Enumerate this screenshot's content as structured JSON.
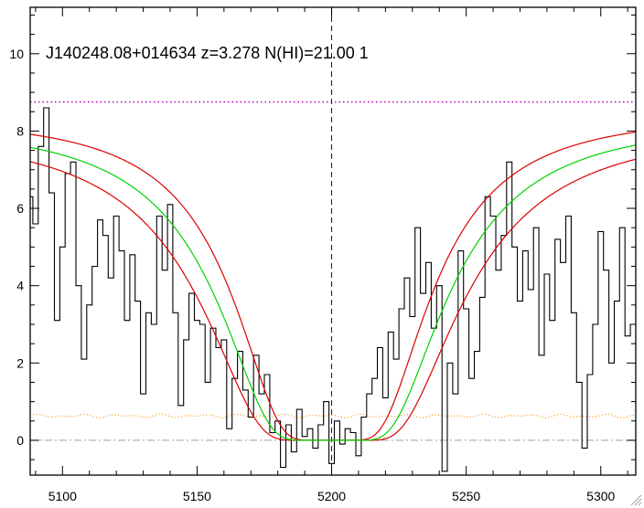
{
  "chart_data": {
    "type": "line",
    "title": "J140248.08+014634 z=3.278 N(HI)=21.00 1",
    "xlabel": "",
    "ylabel": "",
    "xlim": [
      5088,
      5313
    ],
    "ylim": [
      -0.9,
      11.2
    ],
    "x_ticks": [
      5100,
      5150,
      5200,
      5250,
      5300
    ],
    "y_ticks": [
      0,
      2,
      4,
      6,
      8,
      10
    ],
    "grid": false,
    "legend": "none",
    "reference_lines": {
      "zero_level": 0,
      "continuum_level": 8.75,
      "line_center": 5200
    },
    "voigt_fit": {
      "center": 5200,
      "continuum_start": 8.2,
      "continuum_end": 8.25,
      "tau_center": 200,
      "b_wavelength": 38
    },
    "voigt_fit_bounds": {
      "lower_scale": 1.35,
      "upper_scale": 0.72,
      "continuum_offset": 0.18
    },
    "series": [
      {
        "type": "step",
        "x": [
          5088,
          5090,
          5092,
          5094,
          5096,
          5098,
          5100,
          5102,
          5104,
          5106,
          5108,
          5110,
          5112,
          5114,
          5116,
          5118,
          5120,
          5122,
          5124,
          5126,
          5128,
          5130,
          5132,
          5134,
          5136,
          5138,
          5140,
          5142,
          5144,
          5146,
          5148,
          5150,
          5152,
          5154,
          5156,
          5158,
          5160,
          5162,
          5164,
          5166,
          5168,
          5170,
          5172,
          5174,
          5176,
          5178,
          5180,
          5182,
          5184,
          5186,
          5188,
          5190,
          5192,
          5194,
          5196,
          5198,
          5200,
          5202,
          5204,
          5206,
          5208,
          5210,
          5212,
          5214,
          5216,
          5218,
          5220,
          5222,
          5224,
          5226,
          5228,
          5230,
          5232,
          5234,
          5236,
          5238,
          5240,
          5242,
          5244,
          5246,
          5248,
          5250,
          5252,
          5254,
          5256,
          5258,
          5260,
          5262,
          5264,
          5266,
          5268,
          5270,
          5272,
          5274,
          5276,
          5278,
          5280,
          5282,
          5284,
          5286,
          5288,
          5290,
          5292,
          5294,
          5296,
          5298,
          5300,
          5302,
          5304,
          5306,
          5308,
          5310,
          5312
        ],
        "y": [
          6.3,
          5.6,
          7.6,
          8.6,
          6.4,
          3.1,
          5.0,
          6.9,
          7.2,
          4.0,
          2.1,
          3.5,
          4.5,
          5.7,
          5.3,
          4.2,
          5.8,
          4.9,
          3.1,
          4.8,
          3.6,
          1.2,
          3.3,
          3.0,
          5.8,
          4.4,
          6.1,
          3.3,
          0.9,
          2.6,
          3.8,
          3.1,
          3.0,
          1.5,
          2.9,
          2.4,
          2.6,
          0.3,
          1.6,
          2.3,
          1.3,
          0.6,
          2.2,
          1.2,
          1.7,
          0.2,
          0.5,
          -0.7,
          0.4,
          -0.3,
          0.8,
          0.1,
          0.3,
          -0.2,
          0.4,
          1.0,
          -0.6,
          0.5,
          -0.1,
          0.3,
          0.2,
          -0.4,
          0.6,
          1.2,
          1.6,
          2.4,
          1.1,
          2.8,
          2.1,
          3.4,
          4.2,
          3.2,
          5.5,
          3.8,
          4.6,
          2.9,
          4.0,
          -0.8,
          2.0,
          1.2,
          4.9,
          3.4,
          1.6,
          2.3,
          3.7,
          6.3,
          5.8,
          4.4,
          5.3,
          7.2,
          5.0,
          3.6,
          4.9,
          3.9,
          5.5,
          2.2,
          4.3,
          3.1,
          5.2,
          4.6,
          5.8,
          3.3,
          1.5,
          -0.2,
          1.7,
          3.0,
          5.4,
          4.4,
          2.0,
          3.6,
          5.5,
          2.7,
          3.0
        ]
      },
      {
        "type": "dotted",
        "y_const": 0.63,
        "amplitude": 0.05
      }
    ],
    "colors": {
      "flux": "#000000",
      "error": "#ff8c00",
      "fit": "#00d200",
      "bounds": "#dc0000",
      "continuum": "#c000c0",
      "center_line": "#0000c8",
      "zero_line": "#a0a0a0"
    }
  }
}
